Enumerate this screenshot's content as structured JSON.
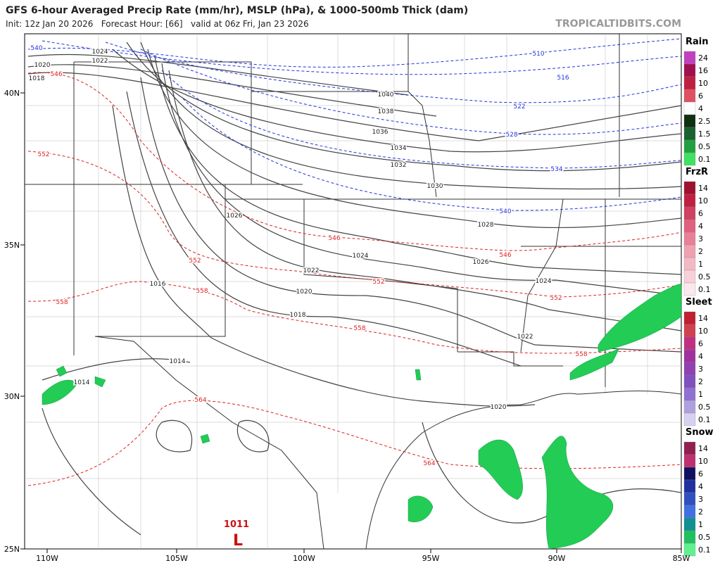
{
  "header": {
    "title": "GFS 6-hour Averaged Precip Rate (mm/hr), MSLP (hPa), & 1000-500mb Thick (dam)",
    "subtitle": "Init: 12z Jan 20 2026   Forecast Hour: [66]   valid at 06z Fri, Jan 23 2026",
    "credit": "TROPICALTIDBITS.COM"
  },
  "lat_labels": [
    "40N",
    "35N",
    "30N",
    "25N"
  ],
  "lon_labels": [
    "110W",
    "105W",
    "100W",
    "95W",
    "90W",
    "85W"
  ],
  "isobar_labels": [
    "1024",
    "1022",
    "1020",
    "1018",
    "1040",
    "1038",
    "1036",
    "1034",
    "1032",
    "1030",
    "1028",
    "1026",
    "1024",
    "1026",
    "1022",
    "1024",
    "1020",
    "1018",
    "1016",
    "1022",
    "1014",
    "1014",
    "1020"
  ],
  "blue_thickness_labels": [
    "540",
    "510",
    "516",
    "522",
    "528",
    "534",
    "540"
  ],
  "red_thickness_labels": [
    "546",
    "552",
    "546",
    "552",
    "558",
    "552",
    "558",
    "558",
    "546",
    "552",
    "558",
    "564",
    "564"
  ],
  "low": {
    "pressure": "1011",
    "symbol": "L"
  },
  "legend": [
    {
      "title": "Rain",
      "labels": [
        "24",
        "16",
        "10",
        "6",
        "4",
        "2.5",
        "1.5",
        "0.5",
        "0.1"
      ]
    },
    {
      "title": "FrzR",
      "labels": [
        "14",
        "10",
        "6",
        "4",
        "3",
        "2",
        "1",
        "0.5",
        "0.1"
      ]
    },
    {
      "title": "Sleet",
      "labels": [
        "14",
        "10",
        "6",
        "4",
        "3",
        "2",
        "1",
        "0.5",
        "0.1"
      ]
    },
    {
      "title": "Snow",
      "labels": [
        "14",
        "10",
        "6",
        "4",
        "3",
        "2",
        "1",
        "0.5",
        "0.1"
      ]
    }
  ]
}
